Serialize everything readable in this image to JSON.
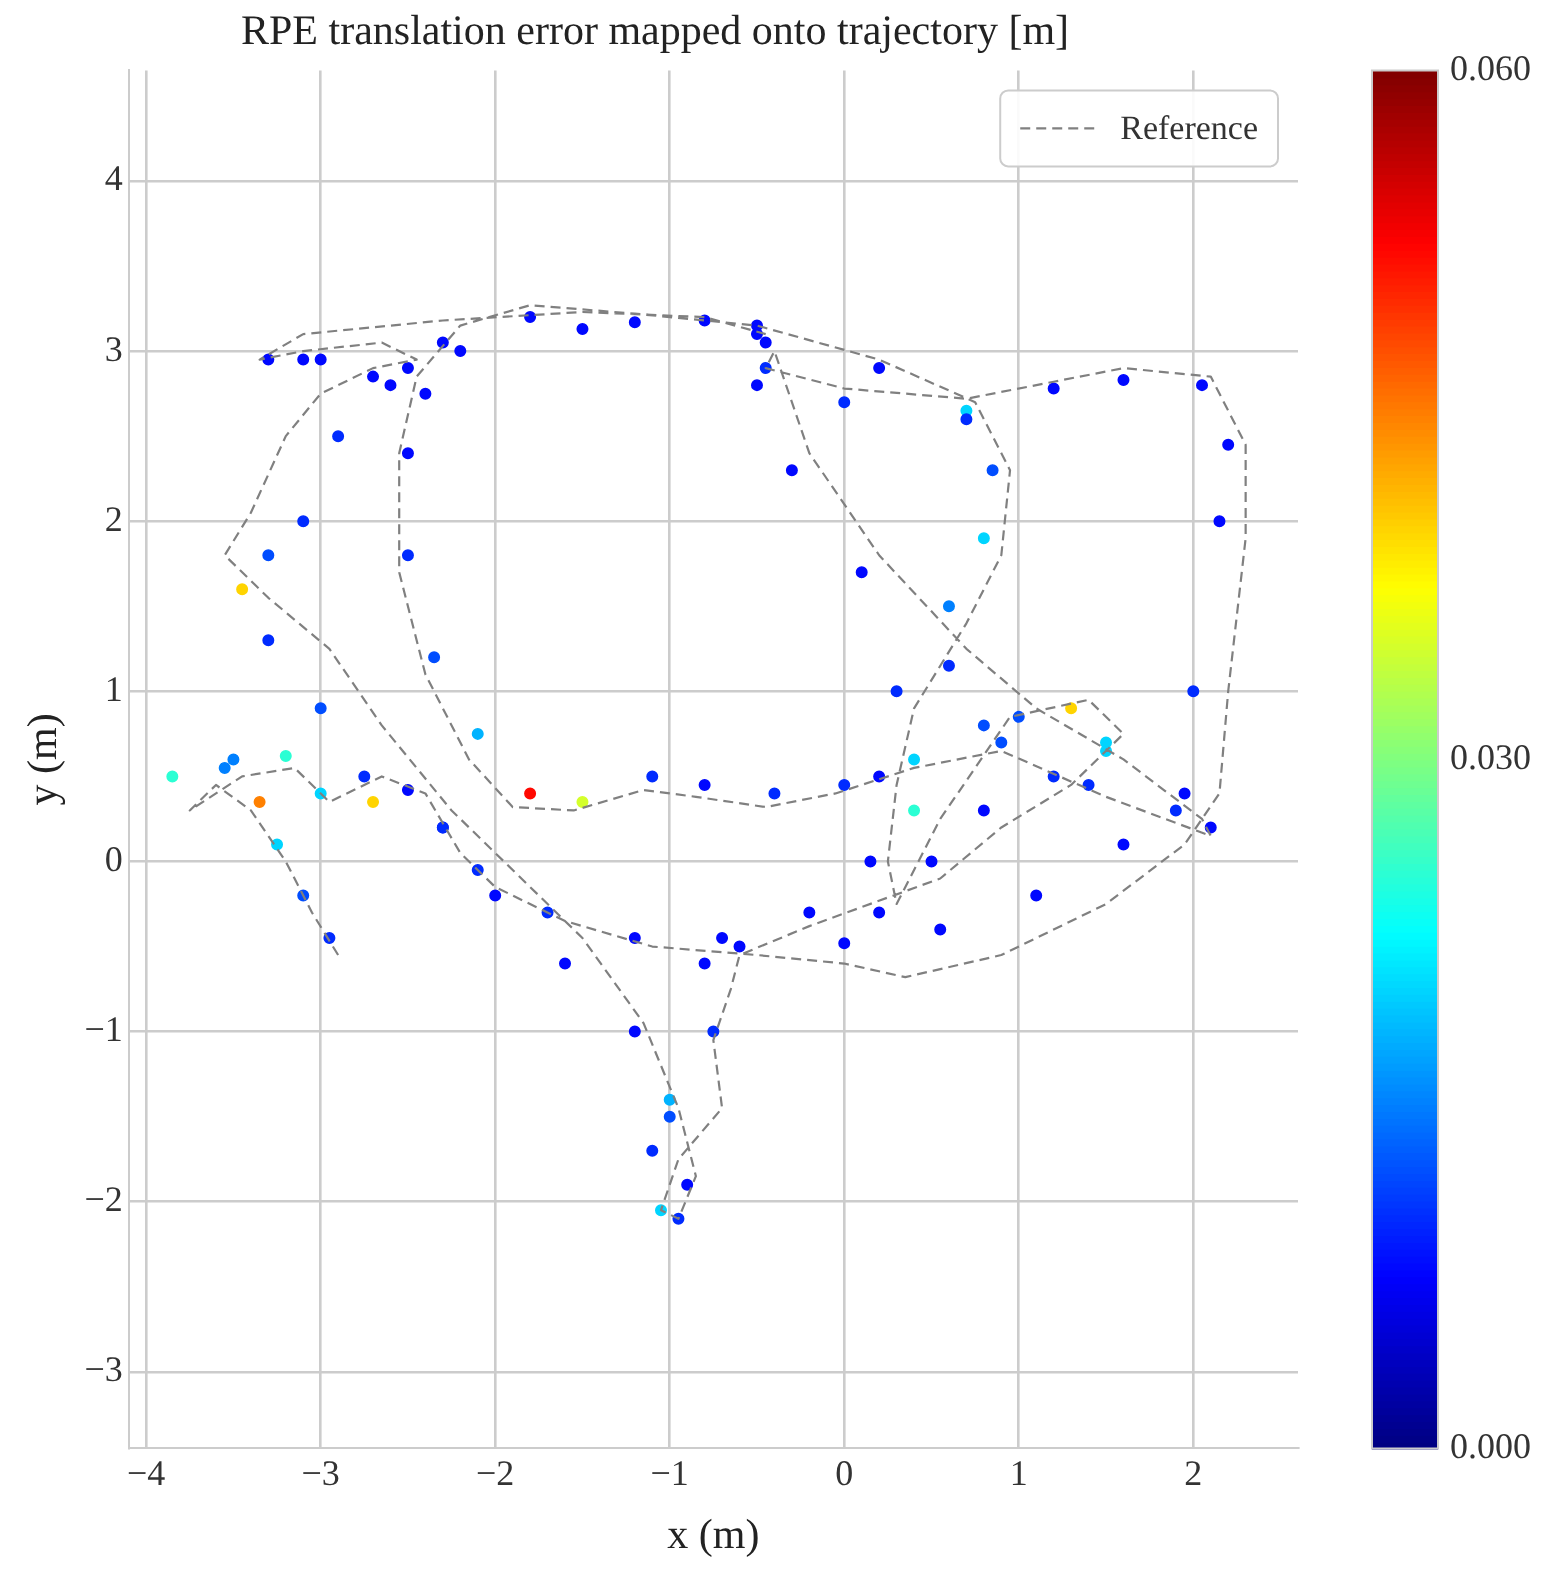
{
  "chart_data": {
    "type": "line",
    "title": "RPE translation error mapped onto trajectory [m]",
    "xlabel": "x (m)",
    "ylabel": "y (m)",
    "xlim": [
      -4.1,
      2.6
    ],
    "ylim": [
      -3.45,
      4.65
    ],
    "xticks": [
      -4,
      -3,
      -2,
      -1,
      0,
      1,
      2
    ],
    "yticks": [
      -3,
      -2,
      -1,
      0,
      1,
      2,
      3,
      4
    ],
    "grid": true,
    "legend": "top right",
    "clim": [
      0,
      0.06
    ],
    "cticks": [
      {
        "value": 0,
        "label": "0.000"
      },
      {
        "value": 0.03,
        "label": "0.030"
      },
      {
        "value": 0.06,
        "label": "0.060"
      }
    ],
    "series": [
      {
        "name": "Reference",
        "color": "#808080",
        "line_style": "dashed",
        "x": [
          -2.9,
          -3.05,
          -3.2,
          -3.4,
          -3.6,
          -3.75,
          -3.45,
          -3.15,
          -2.95,
          -2.65,
          -2.4,
          -2.2,
          -2.0,
          -1.6,
          -1.1,
          -0.5,
          0.0,
          0.35,
          0.9,
          1.5,
          1.95,
          2.15,
          2.2,
          2.3,
          2.3,
          2.1,
          1.6,
          1.2,
          0.7,
          0.0,
          -0.45,
          -0.4,
          -0.2,
          0.2,
          0.7,
          1.1,
          1.6,
          2.05,
          2.1,
          1.5,
          0.9,
          0.4,
          -0.05,
          -0.45,
          -0.85,
          -1.15,
          -1.55,
          -1.9,
          -2.15,
          -2.4,
          -2.55,
          -2.55,
          -2.45,
          -2.2,
          -1.8,
          -1.2,
          -0.5,
          0.2,
          0.75,
          0.95,
          0.9,
          0.7,
          0.4,
          0.3,
          0.25,
          0.3,
          0.55,
          0.95,
          1.4,
          1.6,
          1.3,
          0.9,
          0.55,
          -0.2,
          -0.6,
          -0.65,
          -0.75,
          -0.7,
          -0.95,
          -1.05,
          -0.95,
          -0.85,
          -0.95,
          -1.15,
          -1.5,
          -1.95,
          -2.25,
          -2.65,
          -2.95,
          -3.3,
          -3.55,
          -3.4,
          -3.2,
          -3.0,
          -2.7,
          -2.45,
          -2.65,
          -3.1,
          -3.35,
          -3.1,
          -2.3,
          -1.5,
          -0.8,
          -0.45
        ],
        "values": [
          -0.55,
          -0.3,
          0.0,
          0.3,
          0.45,
          0.3,
          0.5,
          0.55,
          0.35,
          0.5,
          0.4,
          0.05,
          -0.15,
          -0.35,
          -0.5,
          -0.55,
          -0.6,
          -0.68,
          -0.55,
          -0.25,
          0.1,
          0.4,
          1.0,
          1.9,
          2.45,
          2.85,
          2.9,
          2.82,
          2.72,
          2.78,
          2.9,
          3.0,
          2.4,
          1.8,
          1.25,
          0.9,
          0.6,
          0.25,
          0.15,
          0.38,
          0.65,
          0.55,
          0.4,
          0.32,
          0.38,
          0.42,
          0.3,
          0.32,
          0.6,
          1.1,
          1.7,
          2.4,
          2.85,
          3.15,
          3.27,
          3.22,
          3.15,
          2.95,
          2.7,
          2.3,
          1.8,
          1.4,
          0.9,
          0.45,
          0.0,
          -0.25,
          0.25,
          0.85,
          0.95,
          0.75,
          0.45,
          0.2,
          -0.1,
          -0.38,
          -0.55,
          -0.75,
          -1.05,
          -1.45,
          -1.75,
          -2.05,
          -2.1,
          -1.85,
          -1.45,
          -0.95,
          -0.45,
          0.0,
          0.3,
          0.8,
          1.25,
          1.55,
          1.8,
          2.05,
          2.5,
          2.75,
          2.9,
          2.95,
          3.05,
          3.0,
          2.95,
          3.1,
          3.18,
          3.23,
          3.2,
          3.1
        ]
      },
      {
        "type": "scatter",
        "marker": "circle",
        "colors": [
          "#002bff",
          "#004dff",
          "#00d4ff",
          "#ff8000",
          "#0080ff",
          "#2bffd4",
          "#0080ff",
          "#2bffd4",
          "#00d4ff",
          "#002bff",
          "#0008ff",
          "#0008ff",
          "#002bff",
          "#002bff",
          "#0008ff",
          "#0008ff",
          "#0008ff",
          "#0008ff",
          "#0008ff",
          "#0008ff",
          "#0008ff",
          "#002bff",
          "#0008ff",
          "#0008ff",
          "#0008ff",
          "#0008ff",
          "#0008ff",
          "#00d4ff",
          "#002bff",
          "#0008ff",
          "#002bff",
          "#0008ff",
          "#0008ff",
          "#002bff",
          "#004dff",
          "#00d4ff",
          "#002bff",
          "#0008ff",
          "#002bff",
          "#004dff",
          "#00d4ff",
          "#002bff",
          "#002bff",
          "#0008ff",
          "#002bff",
          "#d4ff2b",
          "#ff0800",
          "#00b3ff",
          "#004dff",
          "#002bff",
          "#0008ff",
          "#0008ff",
          "#0008ff",
          "#0008ff",
          "#0008ff",
          "#0008ff",
          "#0008ff",
          "#002bff",
          "#004dff",
          "#00d4ff",
          "#0080ff",
          "#002bff",
          "#0008ff",
          "#0008ff",
          "#0008ff",
          "#2bffd4",
          "#004dff",
          "#ffd400",
          "#00d4ff",
          "#002bff",
          "#0008ff",
          "#0008ff",
          "#0008ff",
          "#0008ff",
          "#0008ff",
          "#002bff",
          "#00b3ff",
          "#002bff",
          "#00d4ff",
          "#002bff",
          "#0008ff",
          "#004dff",
          "#0008ff",
          "#0008ff",
          "#0008ff",
          "#002bff",
          "#ffd400",
          "#004dff",
          "#002bff",
          "#ffd400",
          "#004dff",
          "#002bff",
          "#002bff",
          "#0008ff",
          "#0008ff",
          "#0008ff",
          "#0008ff",
          "#0008ff",
          "#0008ff",
          "#0008ff",
          "#0008ff",
          "#0008ff",
          "#0008ff",
          "#0008ff"
        ],
        "x": [
          -2.95,
          -3.1,
          -3.25,
          -3.35,
          -3.55,
          -3.85,
          -3.5,
          -3.2,
          -3.0,
          -2.75,
          -2.5,
          -2.3,
          -2.1,
          -1.7,
          -1.2,
          -0.6,
          0.0,
          0.55,
          1.1,
          1.6,
          1.95,
          2.0,
          2.15,
          2.2,
          2.05,
          1.6,
          1.2,
          0.7,
          0.0,
          -0.5,
          -0.45,
          -0.3,
          0.1,
          0.6,
          1.0,
          1.5,
          1.9,
          2.1,
          1.4,
          0.9,
          0.4,
          0.0,
          -0.4,
          -0.8,
          -1.1,
          -1.5,
          -1.8,
          -2.1,
          -2.35,
          -2.5,
          -2.5,
          -2.4,
          -2.2,
          -1.8,
          -1.2,
          -0.5,
          0.2,
          0.7,
          0.85,
          0.8,
          0.6,
          0.3,
          0.2,
          0.15,
          0.2,
          0.4,
          0.8,
          1.3,
          1.5,
          1.2,
          0.8,
          0.5,
          -0.2,
          -0.7,
          -0.8,
          -0.75,
          -1.0,
          -1.1,
          -1.05,
          -0.95,
          -0.9,
          -1.0,
          -1.2,
          -1.6,
          -2.0,
          -2.3,
          -2.7,
          -3.0,
          -3.3,
          -3.45,
          -3.3,
          -3.1,
          -2.9,
          -2.6,
          -2.5,
          -2.7,
          -3.1,
          -3.3,
          -3.0,
          -2.3,
          -1.5,
          -0.8,
          -0.5,
          -0.45
        ],
        "values": [
          -0.45,
          -0.2,
          0.1,
          0.35,
          0.55,
          0.5,
          0.6,
          0.62,
          0.4,
          0.5,
          0.42,
          0.2,
          -0.05,
          -0.3,
          -0.45,
          -0.5,
          -0.48,
          -0.4,
          -0.2,
          0.1,
          0.4,
          1.0,
          2.0,
          2.45,
          2.8,
          2.83,
          2.78,
          2.65,
          2.7,
          2.8,
          2.9,
          2.3,
          1.7,
          1.15,
          0.85,
          0.65,
          0.3,
          0.2,
          0.45,
          0.7,
          0.6,
          0.45,
          0.4,
          0.45,
          0.5,
          0.35,
          0.4,
          0.75,
          1.2,
          1.8,
          2.4,
          2.75,
          3.0,
          3.2,
          3.17,
          3.1,
          2.9,
          2.6,
          2.3,
          1.9,
          1.5,
          1.0,
          0.5,
          0.0,
          -0.3,
          0.3,
          0.8,
          0.9,
          0.7,
          0.5,
          0.3,
          0.0,
          -0.3,
          -0.45,
          -0.6,
          -1.0,
          -1.4,
          -1.7,
          -2.05,
          -2.1,
          -1.9,
          -1.5,
          -1.0,
          -0.6,
          -0.2,
          0.2,
          0.35,
          0.9,
          1.3,
          1.6,
          1.8,
          2.0,
          2.5,
          2.8,
          2.9,
          2.85,
          2.95,
          2.95,
          2.95,
          3.05,
          3.13,
          3.18,
          3.15,
          3.05
        ],
        "cvalues": [
          0.01,
          0.012,
          0.02,
          0.045,
          0.015,
          0.025,
          0.015,
          0.025,
          0.02,
          0.01,
          0.008,
          0.008,
          0.01,
          0.01,
          0.008,
          0.008,
          0.008,
          0.008,
          0.008,
          0.008,
          0.008,
          0.01,
          0.008,
          0.008,
          0.008,
          0.008,
          0.008,
          0.02,
          0.01,
          0.008,
          0.01,
          0.008,
          0.008,
          0.01,
          0.012,
          0.02,
          0.01,
          0.008,
          0.01,
          0.012,
          0.02,
          0.01,
          0.01,
          0.008,
          0.01,
          0.035,
          0.052,
          0.018,
          0.012,
          0.01,
          0.008,
          0.008,
          0.008,
          0.008,
          0.008,
          0.008,
          0.008,
          0.01,
          0.012,
          0.02,
          0.015,
          0.01,
          0.008,
          0.008,
          0.008,
          0.025,
          0.012,
          0.04,
          0.02,
          0.01,
          0.008,
          0.008,
          0.008,
          0.008,
          0.008,
          0.01,
          0.018,
          0.01,
          0.02,
          0.01,
          0.008,
          0.012,
          0.008,
          0.008,
          0.008,
          0.01,
          0.04,
          0.012,
          0.01,
          0.04,
          0.012,
          0.01,
          0.01,
          0.008,
          0.008,
          0.008,
          0.008,
          0.008,
          0.008,
          0.008,
          0.008,
          0.008,
          0.008,
          0.008
        ]
      }
    ]
  }
}
